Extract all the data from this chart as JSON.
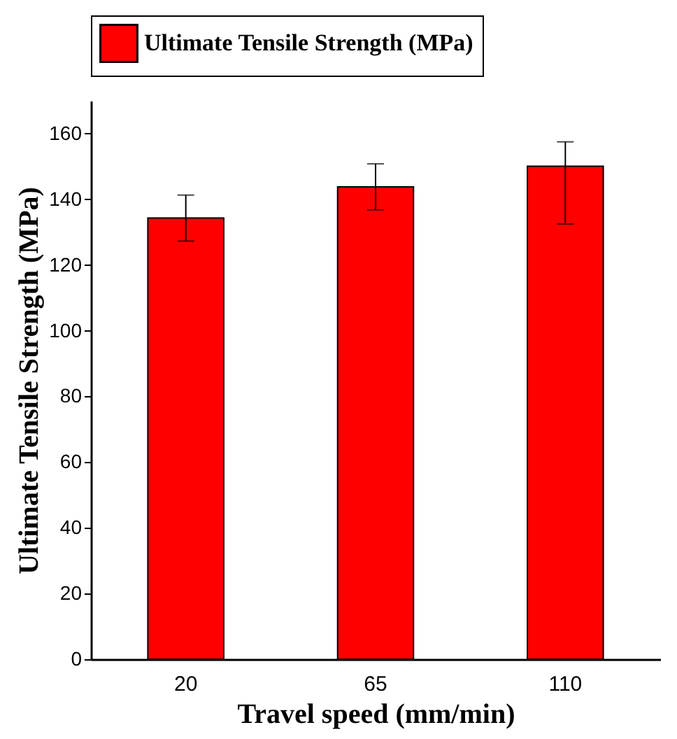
{
  "chart_data": {
    "type": "bar",
    "categories": [
      "20",
      "65",
      "110"
    ],
    "series": [
      {
        "name": "Ultimate Tensile Strength (MPa)",
        "color": "#ff0000",
        "values": [
          134.3,
          143.8,
          150.1
        ],
        "errors": [
          7,
          7,
          [
            132.5,
            157.5
          ]
        ]
      }
    ],
    "xlabel": "Travel speed (mm/min)",
    "ylabel": "Ultimate Tensile Strength (MPa)",
    "ylim": [
      0,
      170
    ],
    "yticks": [
      0,
      20,
      40,
      60,
      80,
      100,
      120,
      140,
      160
    ],
    "grid": false,
    "legend": "top"
  }
}
